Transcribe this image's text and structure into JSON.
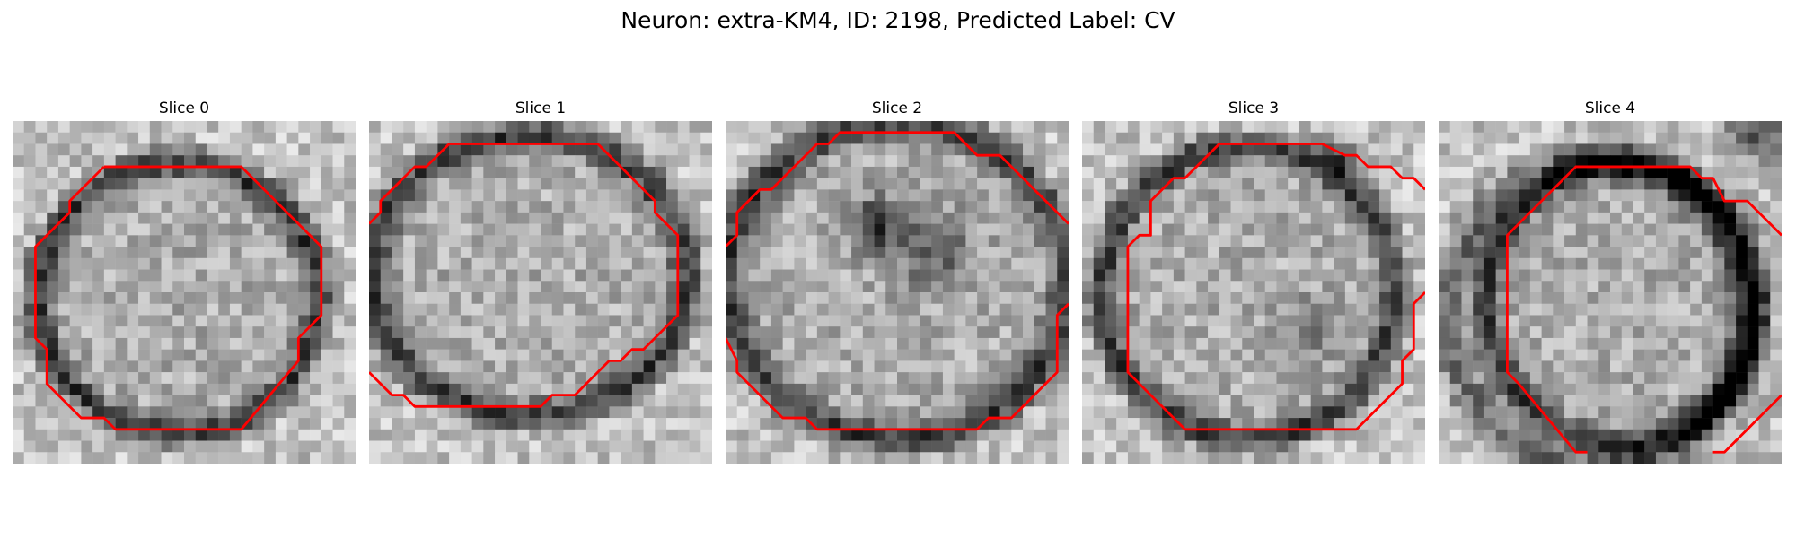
{
  "figure": {
    "title": "Neuron: extra-KM4, ID: 2198, Predicted Label: CV"
  },
  "panels": [
    {
      "title": "Slice 0"
    },
    {
      "title": "Slice 1"
    },
    {
      "title": "Slice 2"
    },
    {
      "title": "Slice 3"
    },
    {
      "title": "Slice 4"
    }
  ],
  "colors": {
    "contour": "#ff0000",
    "background": "#ffffff",
    "colormap": "gray"
  }
}
